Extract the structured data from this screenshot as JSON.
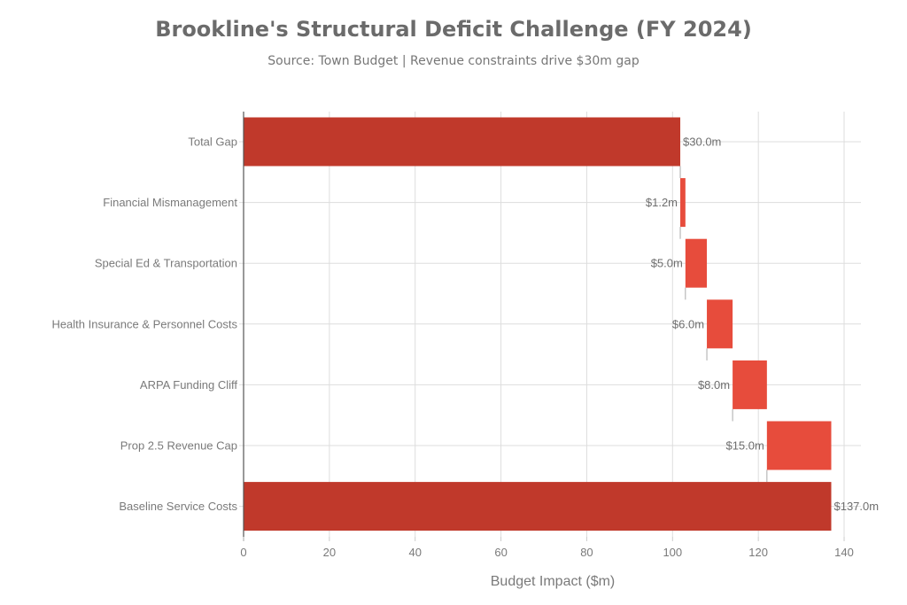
{
  "header": {
    "title": "Brookline's Structural Deficit Challenge (FY 2024)",
    "subtitle": "Source: Town Budget | Revenue constraints drive $30m gap"
  },
  "colors": {
    "total_bar": "#c0392b",
    "delta_bar": "#e74c3c",
    "grid": "#dddddd",
    "axis": "#555555",
    "text": "#7a7a7a"
  },
  "chart_data": {
    "type": "bar",
    "subtype": "horizontal-waterfall",
    "title": "Brookline's Structural Deficit Challenge (FY 2024)",
    "subtitle": "Source: Town Budget | Revenue constraints drive $30m gap",
    "xlabel": "Budget Impact ($m)",
    "ylabel": "",
    "xlim": [
      0,
      144
    ],
    "xticks": [
      0,
      20,
      40,
      60,
      80,
      100,
      120,
      140
    ],
    "grid": true,
    "legend": null,
    "categories": [
      "Total Gap",
      "Financial Mismanagement",
      "Special Ed & Transportation",
      "Health Insurance & Personnel Costs",
      "ARPA Funding Cliff",
      "Prop 2.5 Revenue Cap",
      "Baseline Service Costs"
    ],
    "values": [
      30.0,
      1.2,
      5.0,
      6.0,
      8.0,
      15.0,
      137.0
    ],
    "labels": [
      "$30.0m",
      "$1.2m",
      "$5.0m",
      "$6.0m",
      "$8.0m",
      "$15.0m",
      "$137.0m"
    ],
    "bars": [
      {
        "category": "Total Gap",
        "start": 0,
        "end": 101.8,
        "kind": "total",
        "label": "$30.0m",
        "label_side": "right"
      },
      {
        "category": "Financial Mismanagement",
        "start": 101.8,
        "end": 103.0,
        "kind": "delta",
        "label": "$1.2m",
        "label_side": "left"
      },
      {
        "category": "Special Ed & Transportation",
        "start": 103.0,
        "end": 108.0,
        "kind": "delta",
        "label": "$5.0m",
        "label_side": "left"
      },
      {
        "category": "Health Insurance & Personnel Costs",
        "start": 108.0,
        "end": 114.0,
        "kind": "delta",
        "label": "$6.0m",
        "label_side": "left"
      },
      {
        "category": "ARPA Funding Cliff",
        "start": 114.0,
        "end": 122.0,
        "kind": "delta",
        "label": "$8.0m",
        "label_side": "left"
      },
      {
        "category": "Prop 2.5 Revenue Cap",
        "start": 122.0,
        "end": 137.0,
        "kind": "delta",
        "label": "$15.0m",
        "label_side": "left"
      },
      {
        "category": "Baseline Service Costs",
        "start": 0,
        "end": 137.0,
        "kind": "total",
        "label": "$137.0m",
        "label_side": "right"
      }
    ]
  }
}
